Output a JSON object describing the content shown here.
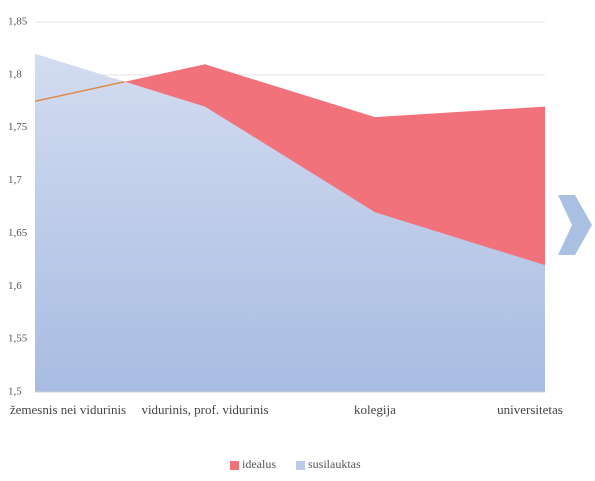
{
  "chart_data": {
    "type": "area",
    "categories": [
      "žemesnis nei vidurinis",
      "vidurinis, prof. vidurinis",
      "kolegija",
      "universitetas"
    ],
    "series": [
      {
        "name": "idealus",
        "color": "#f2727c",
        "values": [
          1.775,
          1.81,
          1.76,
          1.77
        ]
      },
      {
        "name": "susilauktas",
        "color": "#bccbe9",
        "values": [
          1.82,
          1.77,
          1.67,
          1.62
        ]
      }
    ],
    "ylim": [
      1.5,
      1.85
    ],
    "yticks": [
      {
        "value": 1.5,
        "label": "1,5"
      },
      {
        "value": 1.55,
        "label": "1,55"
      },
      {
        "value": 1.6,
        "label": "1,6"
      },
      {
        "value": 1.65,
        "label": "1,65"
      },
      {
        "value": 1.7,
        "label": "1,7"
      },
      {
        "value": 1.75,
        "label": "1,75"
      },
      {
        "value": 1.8,
        "label": "1,8"
      },
      {
        "value": 1.85,
        "label": "1,85"
      }
    ],
    "grid": true
  }
}
